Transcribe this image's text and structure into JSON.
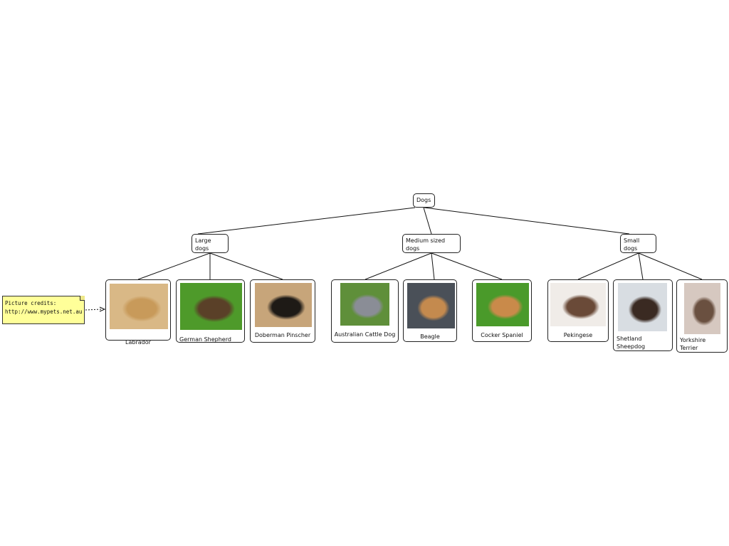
{
  "root": {
    "label": "Dogs"
  },
  "categories": [
    {
      "label_lines": [
        "Large",
        "dogs"
      ],
      "children": [
        {
          "label": "Labrador",
          "colors": [
            "#d9b886",
            "#c89a5a"
          ]
        },
        {
          "label": "German Shepherd",
          "colors": [
            "#4e9a2a",
            "#5a4028"
          ]
        },
        {
          "label": "Doberman Pinscher",
          "colors": [
            "#c7a57a",
            "#1e1a16"
          ]
        }
      ]
    },
    {
      "label_lines": [
        "Medium sized",
        "dogs"
      ],
      "children": [
        {
          "label": "Australian Cattle Dog",
          "colors": [
            "#5f8f3a",
            "#8a8d96"
          ]
        },
        {
          "label": "Beagle",
          "colors": [
            "#4a5058",
            "#c48a4e"
          ]
        },
        {
          "label": "Cocker Spaniel",
          "colors": [
            "#4a9a2a",
            "#c98a4a"
          ]
        }
      ]
    },
    {
      "label_lines": [
        "Small",
        "dogs"
      ],
      "children": [
        {
          "label": "Pekingese",
          "colors": [
            "#f0ece8",
            "#6a4a38"
          ]
        },
        {
          "label_lines": [
            "Shetland",
            "Sheepdog"
          ],
          "colors": [
            "#d8dde2",
            "#3a2a22"
          ]
        },
        {
          "label_lines": [
            "Yorkshire",
            "Terrier"
          ],
          "colors": [
            "#d6c8c0",
            "#6a5040"
          ]
        }
      ]
    }
  ],
  "note": {
    "lines": [
      "Picture credits:",
      "http://www.mypets.net.au"
    ]
  }
}
